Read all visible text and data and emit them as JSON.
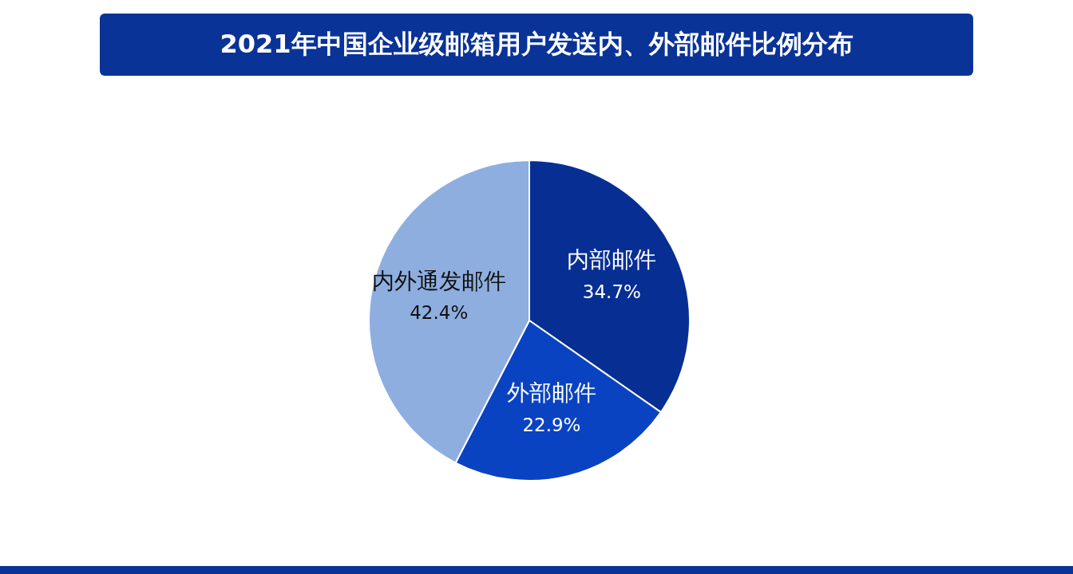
{
  "chart_data": {
    "type": "pie",
    "title": "2021年中国企业级邮箱用户发送内、外部邮件比例分布",
    "categories": [
      "内部邮件",
      "外部邮件",
      "内外通发邮件"
    ],
    "values": [
      34.7,
      22.9,
      42.4
    ],
    "colors": [
      "#072f93",
      "#0a43c2",
      "#8eaee0"
    ],
    "value_labels": [
      "34.7%",
      "22.9%",
      "42.4%"
    ],
    "legend": false
  }
}
